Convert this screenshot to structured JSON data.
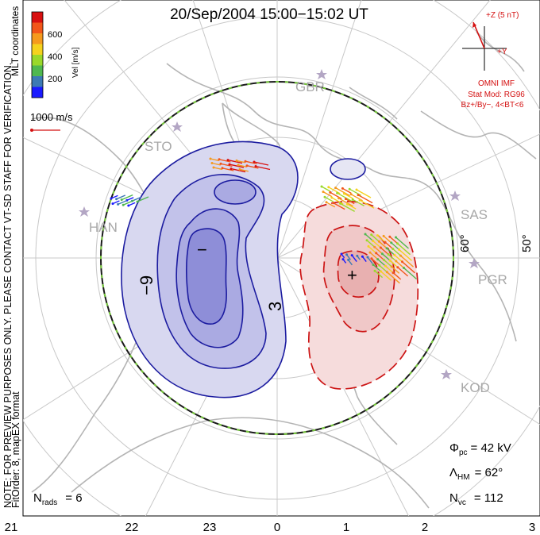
{
  "title": "20/Sep/2004 15:00−15:02 UT",
  "colorbar": {
    "axis_label": "Vel [m/s]",
    "coord_label": "MLT coordinates",
    "ticks": [
      "200",
      "400",
      "600"
    ],
    "colors": [
      "#1a1aff",
      "#3c7ab4",
      "#4fb84f",
      "#9ad82a",
      "#f5d21e",
      "#f59a1e",
      "#f2561a",
      "#d81010"
    ]
  },
  "vector_scale_label": "1000 m/s",
  "imf": {
    "z_label": "+Z (5 nT)",
    "y_label": "+Y",
    "source": "OMNI IMF",
    "model": "Stat Mod: RG96",
    "condition": "Bz+/By−, 4<BT<6"
  },
  "side_notes": {
    "preview": "NOTE: FOR PREVIEW PURPOSES ONLY. PLEASE CONTACT VT-SD STAFF FOR VERIFICATION.",
    "fit_order": "FitOrder: 8, mapEX format"
  },
  "stations": [
    "GBR",
    "STO",
    "HAN",
    "SAS",
    "PGR",
    "KOD"
  ],
  "latitude_labels": [
    "60°",
    "50°"
  ],
  "contour_labels": {
    "negative": "−9",
    "positive": "3"
  },
  "extrema_marks": {
    "minimum": "−",
    "maximum": "+"
  },
  "stats": {
    "phi_pc": {
      "symbol": "Φ",
      "sub": "pc",
      "value": "= 42 kV"
    },
    "lambda_hm": {
      "symbol": "Λ",
      "sub": "HM",
      "value": "= 62°"
    },
    "n_vc": {
      "symbol": "N",
      "sub": "vc",
      "value": "= 112"
    },
    "n_rads": {
      "symbol": "N",
      "sub": "rads",
      "value": "= 6"
    }
  },
  "mlt_ticks": [
    "21",
    "22",
    "23",
    "0",
    "1",
    "2",
    "3"
  ]
}
